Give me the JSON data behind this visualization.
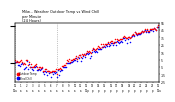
{
  "title": "Milw... Weather Outdoor Temp vs Wind Chill\nper Minute\n(24 Hours)",
  "bg_color": "#ffffff",
  "temp_color": "#ff0000",
  "windchill_color": "#0000ff",
  "legend": [
    "Outdoor Temp",
    "Wind Chill"
  ],
  "ylim": [
    -25,
    55
  ],
  "xlim": [
    0,
    1440
  ],
  "yticks": [
    -25,
    -15,
    -5,
    5,
    15,
    25,
    35,
    45,
    55
  ],
  "vline_x": 420,
  "vline2_x": 0,
  "dot_size": 1.2,
  "step": 10,
  "seed": 12
}
